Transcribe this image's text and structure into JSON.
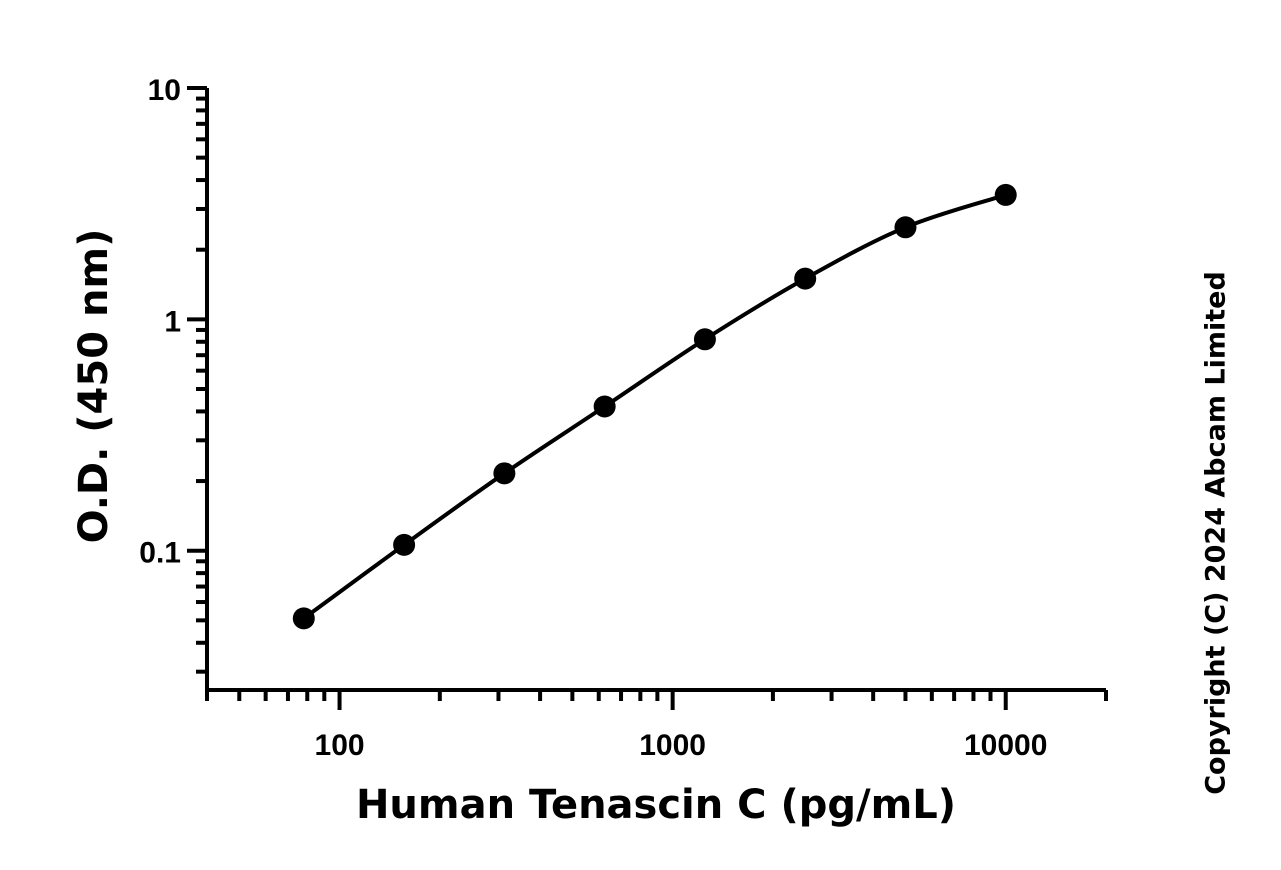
{
  "chart_data": {
    "type": "scatter",
    "xlabel": "Human Tenascin C (pg/mL)",
    "ylabel": "O.D. (450 nm)",
    "x_scale": "log",
    "y_scale": "log",
    "xlim": [
      40,
      20000
    ],
    "ylim": [
      0.025,
      10
    ],
    "x_tick_labels": [
      "100",
      "1000",
      "10000"
    ],
    "y_tick_labels": [
      "0.1",
      "1",
      "10"
    ],
    "grid": false,
    "series": [
      {
        "x": [
          78.1,
          156.25,
          312.5,
          625,
          1250,
          2500,
          5000,
          10000
        ],
        "y": [
          0.051,
          0.106,
          0.216,
          0.42,
          0.82,
          1.5,
          2.5,
          3.45
        ]
      }
    ],
    "fit_curve": true,
    "marker_color": "#000000"
  },
  "copyright": "Copyright (C) 2024 Abcam Limited"
}
